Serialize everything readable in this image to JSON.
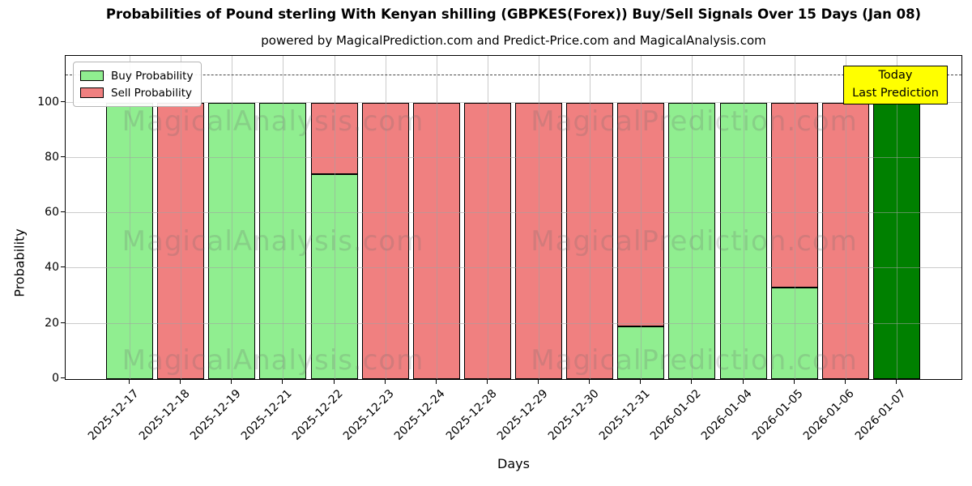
{
  "title": "Probabilities of Pound sterling With Kenyan shilling (GBPKES(Forex)) Buy/Sell Signals Over 15 Days (Jan 08)",
  "subtitle": "powered by MagicalPrediction.com and Predict-Price.com and MagicalAnalysis.com",
  "axes": {
    "xlabel": "Days",
    "ylabel": "Probability"
  },
  "legend": {
    "items": [
      {
        "label": "Buy Probability",
        "color": "#90ee90"
      },
      {
        "label": "Sell Probability",
        "color": "#f08080"
      }
    ]
  },
  "annotation": {
    "line1": "Today",
    "line2": "Last Prediction",
    "bg_color": "#ffff00"
  },
  "watermarks": {
    "left_text": "MagicalAnalysis.com",
    "right_text": "MagicalPrediction.com"
  },
  "chart_data": {
    "type": "bar",
    "stacked": true,
    "title": "Probabilities of Pound sterling With Kenyan shilling (GBPKES(Forex)) Buy/Sell Signals Over 15 Days (Jan 08)",
    "xlabel": "Days",
    "ylabel": "Probability",
    "categories": [
      "2025-12-17",
      "2025-12-18",
      "2025-12-19",
      "2025-12-21",
      "2025-12-22",
      "2025-12-23",
      "2025-12-24",
      "2025-12-28",
      "2025-12-29",
      "2025-12-30",
      "2025-12-31",
      "2026-01-02",
      "2026-01-04",
      "2026-01-05",
      "2026-01-06",
      "2026-01-07"
    ],
    "series": [
      {
        "name": "Buy Probability",
        "color": "#90ee90",
        "values": [
          100,
          0,
          100,
          100,
          74,
          0,
          0,
          0,
          0,
          0,
          19,
          100,
          100,
          33,
          0,
          100
        ]
      },
      {
        "name": "Sell Probability",
        "color": "#f08080",
        "values": [
          0,
          100,
          0,
          0,
          26,
          100,
          100,
          100,
          100,
          100,
          81,
          0,
          0,
          67,
          100,
          0
        ]
      }
    ],
    "special_bars": [
      {
        "index": 15,
        "series": "Buy Probability",
        "color": "#008000",
        "label": "Today Last Prediction"
      }
    ],
    "yticks": [
      0,
      20,
      40,
      60,
      80,
      100
    ],
    "ylim": [
      0,
      116.6
    ],
    "dashed_line_y": 110,
    "grid": true,
    "legend_position": "upper left",
    "bar_edge_color": "#000000"
  }
}
